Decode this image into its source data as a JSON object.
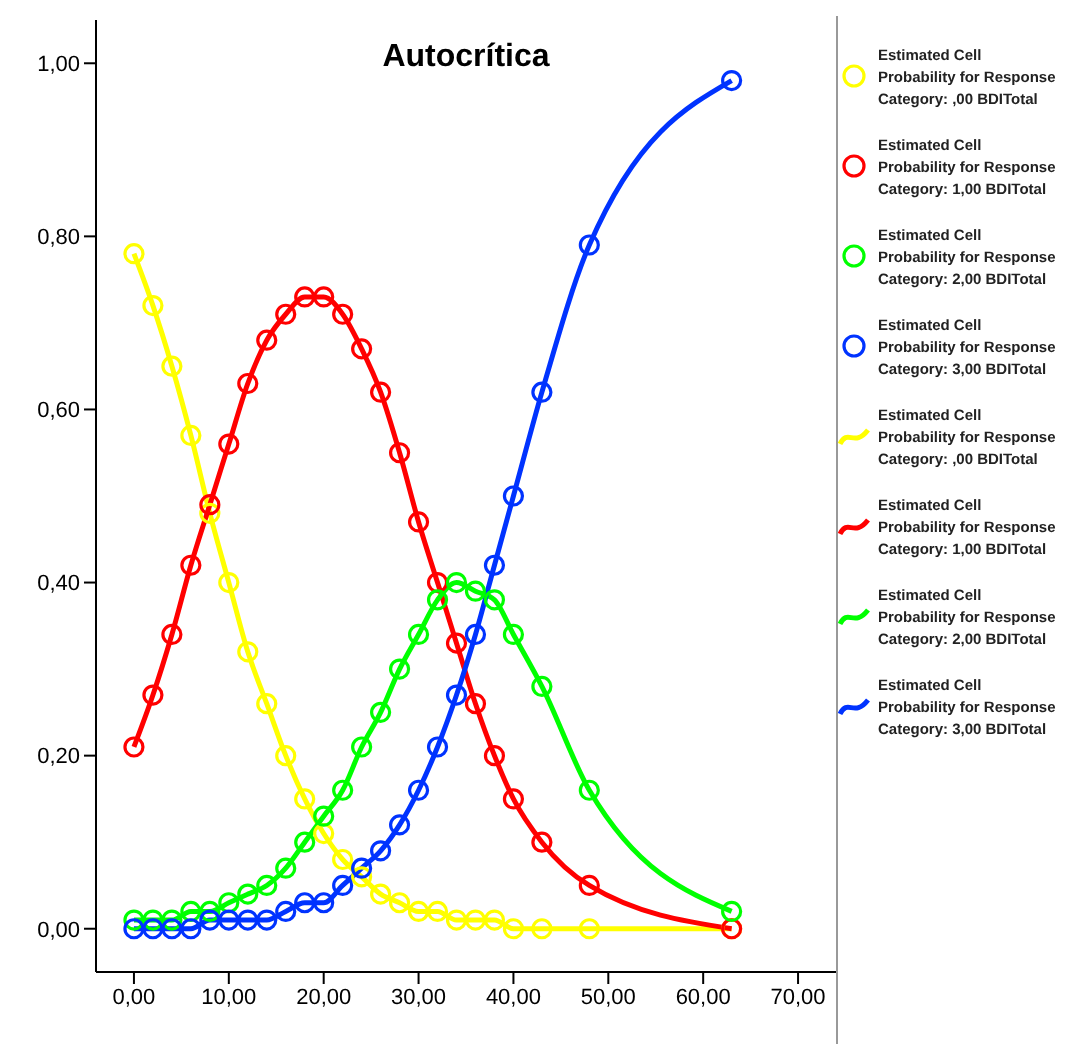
{
  "chart_data": {
    "type": "line",
    "title": "Autocrítica",
    "x": [
      0,
      2,
      4,
      6,
      8,
      10,
      12,
      14,
      16,
      18,
      20,
      22,
      24,
      26,
      28,
      30,
      32,
      34,
      36,
      38,
      40,
      43,
      48,
      63
    ],
    "series": [
      {
        "type": "scatter",
        "marker": "circle",
        "name": "Estimated Cell Probability for Response Category: ,00 BDITotal",
        "color": "#ffff00",
        "values": [
          0.78,
          0.72,
          0.65,
          0.57,
          0.48,
          0.4,
          0.32,
          0.26,
          0.2,
          0.15,
          0.11,
          0.08,
          0.06,
          0.04,
          0.03,
          0.02,
          0.02,
          0.01,
          0.01,
          0.01,
          0.0,
          0.0,
          0.0,
          0.0
        ]
      },
      {
        "type": "scatter",
        "marker": "circle",
        "name": "Estimated Cell Probability for Response Category: 1,00 BDITotal",
        "color": "#ff0000",
        "values": [
          0.21,
          0.27,
          0.34,
          0.42,
          0.49,
          0.56,
          0.63,
          0.68,
          0.71,
          0.73,
          0.73,
          0.71,
          0.67,
          0.62,
          0.55,
          0.47,
          0.4,
          0.33,
          0.26,
          0.2,
          0.15,
          0.1,
          0.05,
          0.0
        ]
      },
      {
        "type": "scatter",
        "marker": "circle",
        "name": "Estimated Cell Probability for Response Category: 2,00 BDITotal",
        "color": "#00ff00",
        "values": [
          0.01,
          0.01,
          0.01,
          0.02,
          0.02,
          0.03,
          0.04,
          0.05,
          0.07,
          0.1,
          0.13,
          0.16,
          0.21,
          0.25,
          0.3,
          0.34,
          0.38,
          0.4,
          0.39,
          0.38,
          0.34,
          0.28,
          0.16,
          0.02
        ]
      },
      {
        "type": "scatter",
        "marker": "circle",
        "name": "Estimated Cell Probability for Response Category: 3,00 BDITotal",
        "color": "#0033ff",
        "values": [
          0.0,
          0.0,
          0.0,
          0.0,
          0.01,
          0.01,
          0.01,
          0.01,
          0.02,
          0.03,
          0.03,
          0.05,
          0.07,
          0.09,
          0.12,
          0.16,
          0.21,
          0.27,
          0.34,
          0.42,
          0.5,
          0.62,
          0.79,
          0.98
        ]
      },
      {
        "name": "Estimated Cell Probability for Response Category: ,00 BDITotal",
        "color": "#ffff00",
        "values": [
          0.78,
          0.72,
          0.65,
          0.57,
          0.48,
          0.4,
          0.32,
          0.26,
          0.2,
          0.15,
          0.11,
          0.08,
          0.06,
          0.04,
          0.03,
          0.02,
          0.02,
          0.01,
          0.01,
          0.01,
          0.0,
          0.0,
          0.0,
          0.0
        ]
      },
      {
        "name": "Estimated Cell Probability for Response Category: 1,00 BDITotal",
        "color": "#ff0000",
        "values": [
          0.21,
          0.27,
          0.34,
          0.42,
          0.49,
          0.56,
          0.63,
          0.68,
          0.71,
          0.73,
          0.73,
          0.71,
          0.67,
          0.62,
          0.55,
          0.47,
          0.4,
          0.33,
          0.26,
          0.2,
          0.15,
          0.1,
          0.05,
          0.0
        ]
      },
      {
        "name": "Estimated Cell Probability for Response Category: 2,00 BDITotal",
        "color": "#00ff00",
        "values": [
          0.01,
          0.01,
          0.01,
          0.02,
          0.02,
          0.03,
          0.04,
          0.05,
          0.07,
          0.1,
          0.13,
          0.16,
          0.21,
          0.25,
          0.3,
          0.34,
          0.38,
          0.4,
          0.39,
          0.38,
          0.34,
          0.28,
          0.16,
          0.02
        ]
      },
      {
        "name": "Estimated Cell Probability for Response Category: 3,00 BDITotal",
        "color": "#0033ff",
        "values": [
          0.0,
          0.0,
          0.0,
          0.0,
          0.01,
          0.01,
          0.01,
          0.01,
          0.02,
          0.03,
          0.03,
          0.05,
          0.07,
          0.09,
          0.12,
          0.16,
          0.21,
          0.27,
          0.34,
          0.42,
          0.5,
          0.62,
          0.79,
          0.98
        ]
      }
    ],
    "xlim": [
      -4,
      74
    ],
    "xticks": [
      {
        "value": 0,
        "label": "0,00"
      },
      {
        "value": 10,
        "label": "10,00"
      },
      {
        "value": 20,
        "label": "20,00"
      },
      {
        "value": 30,
        "label": "30,00"
      },
      {
        "value": 40,
        "label": "40,00"
      },
      {
        "value": 50,
        "label": "50,00"
      },
      {
        "value": 60,
        "label": "60,00"
      },
      {
        "value": 70,
        "label": "70,00"
      }
    ],
    "ylim": [
      -0.05,
      1.05
    ],
    "yticks": [
      {
        "value": 0,
        "label": "0,00"
      },
      {
        "value": 0.2,
        "label": "0,20"
      },
      {
        "value": 0.4,
        "label": "0,40"
      },
      {
        "value": 0.6,
        "label": "0,60"
      },
      {
        "value": 0.8,
        "label": "0,80"
      },
      {
        "value": 1,
        "label": "1,00"
      }
    ],
    "grid": false,
    "legend": "right",
    "marker": "none",
    "line_style": "solid"
  }
}
